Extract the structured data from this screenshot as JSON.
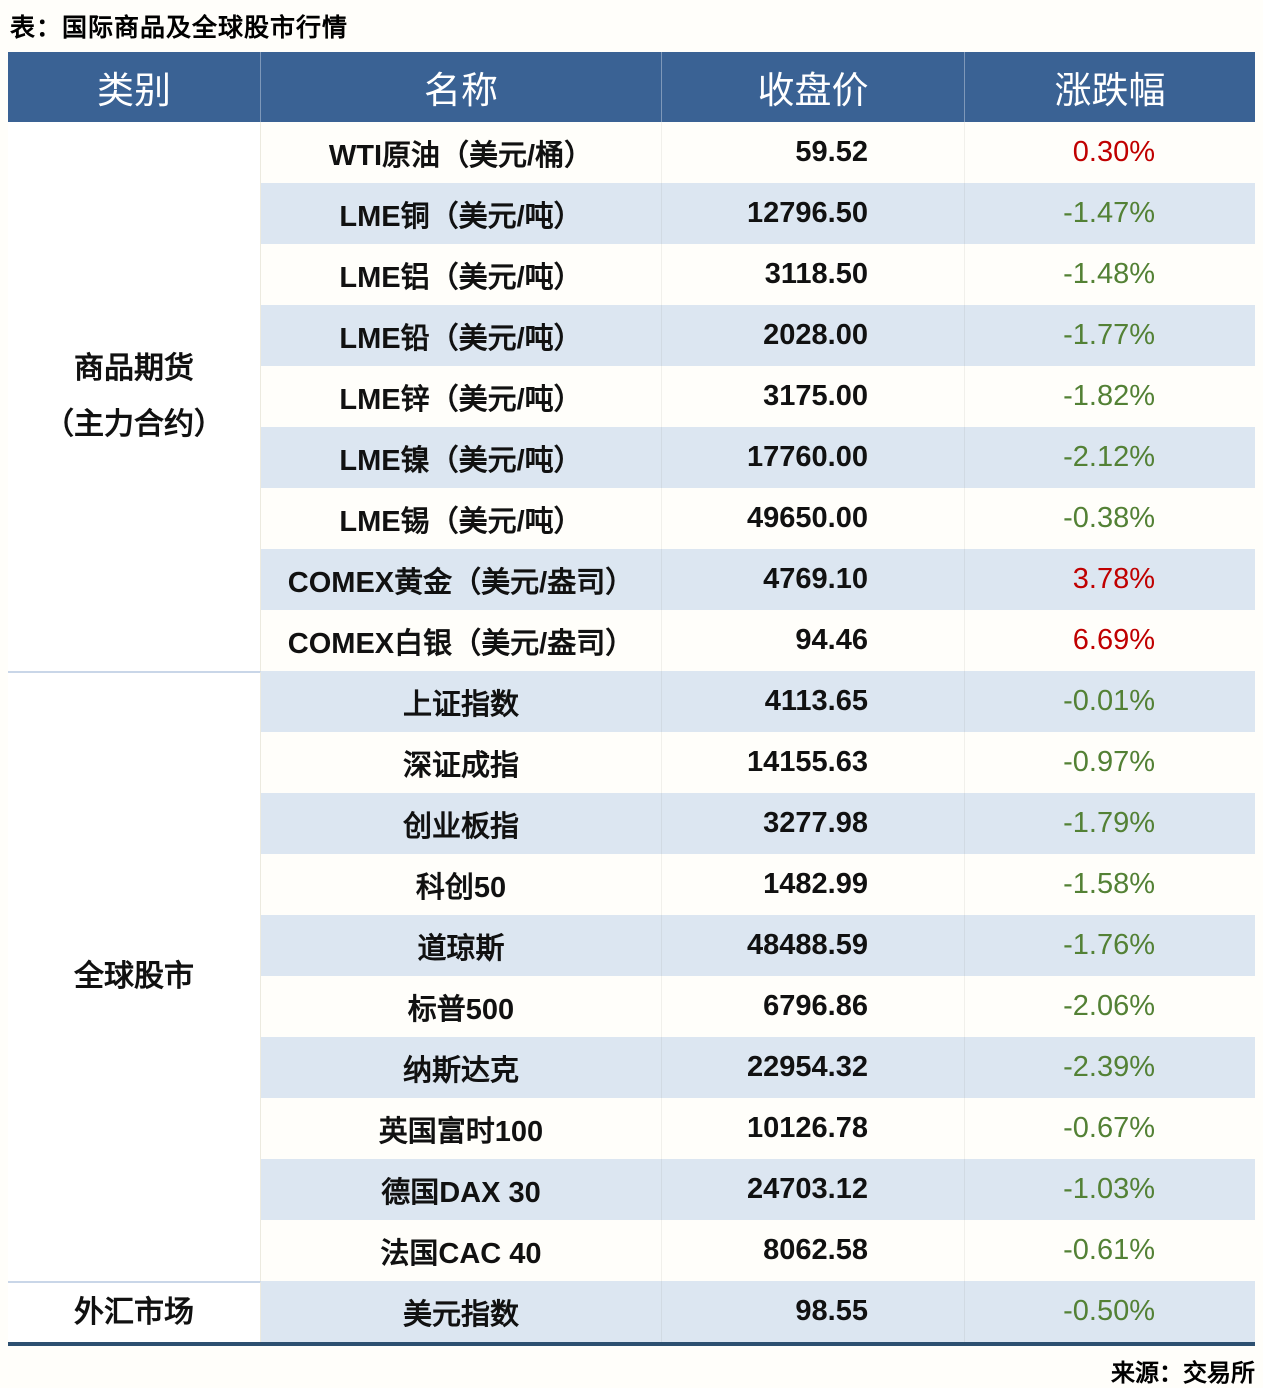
{
  "chart_data": {
    "type": "table",
    "title": "表：国际商品及全球股市行情",
    "source": "来源：交易所",
    "columns": [
      "类别",
      "名称",
      "收盘价",
      "涨跌幅"
    ],
    "categories": [
      {
        "line1": "商品期货",
        "line2": "（主力合约）",
        "rowspan": 9
      },
      {
        "line1": "全球股市",
        "line2": "",
        "rowspan": 10
      },
      {
        "line1": "外汇市场",
        "line2": "",
        "rowspan": 1
      }
    ],
    "rows": [
      {
        "category": "商品期货（主力合约）",
        "name": "WTI原油（美元/桶）",
        "close": "59.52",
        "change": "0.30%",
        "direction": "up"
      },
      {
        "category": "商品期货（主力合约）",
        "name": "LME铜（美元/吨）",
        "close": "12796.50",
        "change": "-1.47%",
        "direction": "down"
      },
      {
        "category": "商品期货（主力合约）",
        "name": "LME铝（美元/吨）",
        "close": "3118.50",
        "change": "-1.48%",
        "direction": "down"
      },
      {
        "category": "商品期货（主力合约）",
        "name": "LME铅（美元/吨）",
        "close": "2028.00",
        "change": "-1.77%",
        "direction": "down"
      },
      {
        "category": "商品期货（主力合约）",
        "name": "LME锌（美元/吨）",
        "close": "3175.00",
        "change": "-1.82%",
        "direction": "down"
      },
      {
        "category": "商品期货（主力合约）",
        "name": "LME镍（美元/吨）",
        "close": "17760.00",
        "change": "-2.12%",
        "direction": "down"
      },
      {
        "category": "商品期货（主力合约）",
        "name": "LME锡（美元/吨）",
        "close": "49650.00",
        "change": "-0.38%",
        "direction": "down"
      },
      {
        "category": "商品期货（主力合约）",
        "name": "COMEX黄金（美元/盎司）",
        "close": "4769.10",
        "change": "3.78%",
        "direction": "up"
      },
      {
        "category": "商品期货（主力合约）",
        "name": "COMEX白银（美元/盎司）",
        "close": "94.46",
        "change": "6.69%",
        "direction": "up"
      },
      {
        "category": "全球股市",
        "name": "上证指数",
        "close": "4113.65",
        "change": "-0.01%",
        "direction": "down"
      },
      {
        "category": "全球股市",
        "name": "深证成指",
        "close": "14155.63",
        "change": "-0.97%",
        "direction": "down"
      },
      {
        "category": "全球股市",
        "name": "创业板指",
        "close": "3277.98",
        "change": "-1.79%",
        "direction": "down"
      },
      {
        "category": "全球股市",
        "name": "科创50",
        "close": "1482.99",
        "change": "-1.58%",
        "direction": "down"
      },
      {
        "category": "全球股市",
        "name": "道琼斯",
        "close": "48488.59",
        "change": "-1.76%",
        "direction": "down"
      },
      {
        "category": "全球股市",
        "name": "标普500",
        "close": "6796.86",
        "change": "-2.06%",
        "direction": "down"
      },
      {
        "category": "全球股市",
        "name": "纳斯达克",
        "close": "22954.32",
        "change": "-2.39%",
        "direction": "down"
      },
      {
        "category": "全球股市",
        "name": "英国富时100",
        "close": "10126.78",
        "change": "-0.67%",
        "direction": "down"
      },
      {
        "category": "全球股市",
        "name": "德国DAX 30",
        "close": "24703.12",
        "change": "-1.03%",
        "direction": "down"
      },
      {
        "category": "全球股市",
        "name": "法国CAC 40",
        "close": "8062.58",
        "change": "-0.61%",
        "direction": "down"
      },
      {
        "category": "外汇市场",
        "name": "美元指数",
        "close": "98.55",
        "change": "-0.50%",
        "direction": "down"
      }
    ],
    "layout": {
      "striped_rows": "even rows #dce6f1, odd rows white",
      "numeric_alignment": "right"
    }
  },
  "colors": {
    "header_bg": "#3a6294",
    "header_text": "#ffffff",
    "stripe": "#dce6f1",
    "up_red": "#c00000",
    "down_green": "#538135",
    "bottom_border": "#2d5070",
    "section_divider": "#c9d6e8"
  }
}
